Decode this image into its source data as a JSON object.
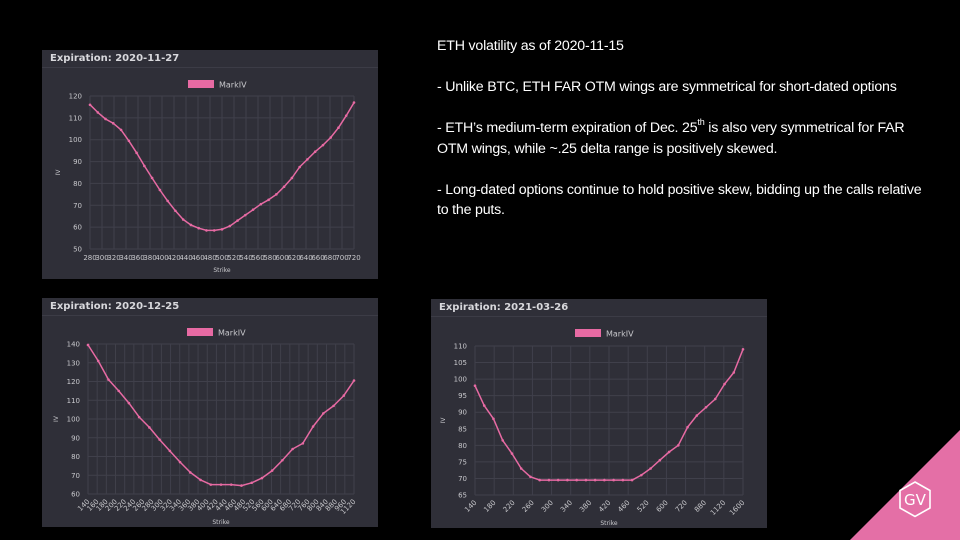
{
  "text": {
    "title": "ETH volatility as of 2020-11-15",
    "bullet1": "- Unlike BTC, ETH FAR OTM wings are symmetrical for short-dated options",
    "bullet2_a": "- ETH’s medium-term expiration of Dec. 25",
    "bullet2_sup": "th",
    "bullet2_b": " is also very symmetrical for FAR OTM wings, while ~.25 delta range is positively skewed.",
    "bullet3": "- Long-dated options continue to hold positive skew, bidding up the calls relative to the puts."
  },
  "logo": {
    "text": "GV",
    "color": "#e46fa6"
  },
  "colors": {
    "series": "#e76aa3",
    "panel_bg": "#2f2f38",
    "grid": "#40404b",
    "tick_text": "#c8c8cc"
  },
  "chart_data": [
    {
      "type": "line",
      "title": "Expiration: 2020-11-27",
      "legend": "MarkIV",
      "legend_position": "top-center",
      "xlabel": "Strike",
      "ylabel": "IV",
      "grid": true,
      "x_ticks": [
        "280",
        "300",
        "320",
        "340",
        "360",
        "380",
        "400",
        "420",
        "440",
        "460",
        "480",
        "500",
        "520",
        "540",
        "560",
        "580",
        "600",
        "620",
        "640",
        "660",
        "680",
        "700",
        "720"
      ],
      "y_ticks": [
        50,
        60,
        70,
        80,
        90,
        100,
        110,
        120
      ],
      "ylim": [
        50,
        120
      ],
      "values": [
        116,
        112.5,
        109.5,
        107.5,
        104.5,
        99.5,
        94,
        88,
        82.5,
        77,
        72,
        67.5,
        63.5,
        61,
        59.5,
        58.5,
        58.5,
        59,
        60.5,
        63,
        65.5,
        68,
        70.5,
        72.5,
        75,
        78.5,
        82.5,
        87.5,
        91,
        94.5,
        97.5,
        101,
        105.5,
        111,
        117
      ]
    },
    {
      "type": "line",
      "title": "Expiration: 2020-12-25",
      "legend": "MarkIV",
      "legend_position": "top-center",
      "xlabel": "Strike",
      "ylabel": "IV",
      "grid": true,
      "x_ticks": [
        "140",
        "160",
        "180",
        "200",
        "220",
        "240",
        "260",
        "280",
        "300",
        "320",
        "340",
        "360",
        "380",
        "400",
        "420",
        "440",
        "460",
        "480",
        "520",
        "560",
        "600",
        "640",
        "680",
        "720",
        "760",
        "800",
        "840",
        "880",
        "960",
        "1120"
      ],
      "y_ticks": [
        60,
        70,
        80,
        90,
        100,
        110,
        120,
        130,
        140
      ],
      "ylim": [
        60,
        140
      ],
      "values": [
        139.5,
        131,
        121,
        115,
        108.5,
        101,
        95.5,
        89,
        83,
        77,
        71.5,
        67.5,
        65,
        65,
        65,
        64.5,
        66,
        68.5,
        72.5,
        78,
        84,
        87,
        96,
        103,
        107,
        112.5,
        120.5
      ]
    },
    {
      "type": "line",
      "title": "Expiration: 2021-03-26",
      "legend": "MarkIV",
      "legend_position": "top-center",
      "xlabel": "Strike",
      "ylabel": "IV",
      "grid": true,
      "x_ticks": [
        "140",
        "180",
        "220",
        "260",
        "300",
        "340",
        "380",
        "420",
        "460",
        "520",
        "600",
        "720",
        "880",
        "1120",
        "1600"
      ],
      "y_ticks": [
        65,
        70,
        75,
        80,
        85,
        90,
        95,
        100,
        105,
        110
      ],
      "ylim": [
        65,
        110
      ],
      "values": [
        98,
        92,
        88,
        81.5,
        77.5,
        73,
        70.5,
        69.5,
        69.5,
        69.5,
        69.5,
        69.5,
        69.5,
        69.5,
        69.5,
        69.5,
        69.5,
        69.5,
        71,
        73,
        75.5,
        78,
        80,
        85.5,
        89,
        91.5,
        94,
        98.5,
        102,
        109
      ]
    }
  ]
}
